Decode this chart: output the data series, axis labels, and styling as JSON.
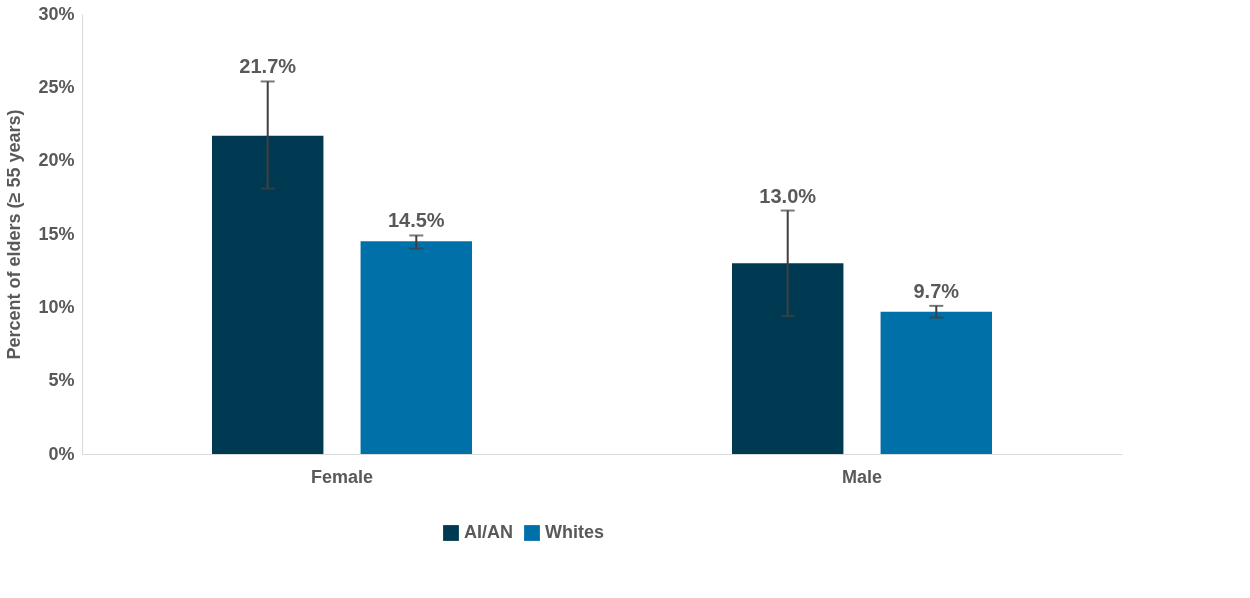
{
  "chart_data": {
    "type": "bar",
    "ylabel": "Percent of elders (≥ 55 years)",
    "categories": [
      "Female",
      "Male"
    ],
    "series": [
      {
        "name": "AI/AN",
        "color": "#003a52",
        "values": [
          21.7,
          13.0
        ],
        "errors": [
          [
            18.1,
            25.4
          ],
          [
            9.4,
            16.6
          ]
        ],
        "value_labels": [
          "21.7%",
          "13.0%"
        ]
      },
      {
        "name": "Whites",
        "color": "#0070a8",
        "values": [
          14.5,
          9.7
        ],
        "errors": [
          [
            14.0,
            14.9
          ],
          [
            9.3,
            10.1
          ]
        ],
        "value_labels": [
          "14.5%",
          "9.7%"
        ]
      }
    ],
    "ylim": [
      0,
      30
    ],
    "yticks": [
      {
        "value": 0,
        "label": "0%"
      },
      {
        "value": 5,
        "label": "5%"
      },
      {
        "value": 10,
        "label": "10%"
      },
      {
        "value": 15,
        "label": "15%"
      },
      {
        "value": 20,
        "label": "20%"
      },
      {
        "value": 25,
        "label": "25%"
      },
      {
        "value": 30,
        "label": "30%"
      }
    ],
    "grid": false,
    "legend": "bottom"
  }
}
